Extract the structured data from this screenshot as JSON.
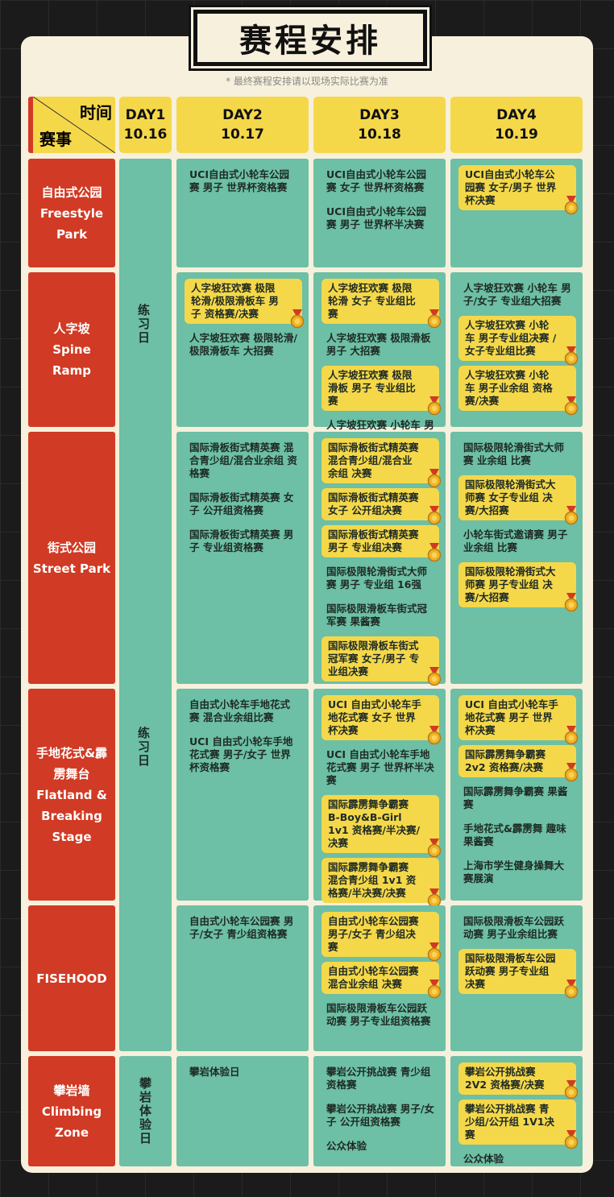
{
  "header": {
    "title": "赛程安排",
    "note": "* 最终赛程安排请以现场实际比赛为准",
    "corner": {
      "time": "时间",
      "event": "赛事"
    },
    "days": [
      {
        "day": "DAY1",
        "date": "10.16"
      },
      {
        "day": "DAY2",
        "date": "10.17"
      },
      {
        "day": "DAY3",
        "date": "10.18"
      },
      {
        "day": "DAY4",
        "date": "10.19"
      }
    ]
  },
  "day1": {
    "merged": [
      "练习日",
      "练习日"
    ],
    "climbing": "攀岩体验日"
  },
  "rows": [
    {
      "name": [
        "自由式公园",
        "Freestyle",
        "Park"
      ],
      "cells": [
        [
          {
            "text": "UCI自由式小轮车公园赛 男子 世界杯资格赛",
            "final": false
          }
        ],
        [
          {
            "text": "UCI自由式小轮车公园赛 女子 世界杯资格赛",
            "final": false
          },
          {
            "text": "UCI自由式小轮车公园赛 男子 世界杯半决赛",
            "final": false
          }
        ],
        [
          {
            "text": "UCI自由式小轮车公园赛 女子/男子 世界杯决赛",
            "final": true
          }
        ]
      ]
    },
    {
      "name": [
        "人字坡",
        "Spine",
        "Ramp"
      ],
      "cells": [
        [
          {
            "text": "人字坡狂欢赛 极限轮滑/极限滑板车 男子 资格赛/决赛",
            "final": true
          },
          {
            "text": "人字坡狂欢赛 极限轮滑/极限滑板车 大招赛",
            "final": false
          }
        ],
        [
          {
            "text": "人字坡狂欢赛 极限轮滑 女子 专业组比赛",
            "final": true
          },
          {
            "text": "人字坡狂欢赛 极限滑板 男子 大招赛",
            "final": false
          },
          {
            "text": "人字坡狂欢赛 极限滑板 男子 专业组比赛",
            "final": true
          },
          {
            "text": "人字坡狂欢赛 小轮车 男子 专业组资格赛",
            "final": false
          }
        ],
        [
          {
            "text": "人字坡狂欢赛 小轮车 男子/女子 专业组大招赛",
            "final": false
          },
          {
            "text": "人字坡狂欢赛 小轮车 男子专业组决赛 / 女子专业组比赛",
            "final": true
          },
          {
            "text": "人字坡狂欢赛 小轮车 男子业余组 资格赛/决赛",
            "final": true
          }
        ]
      ]
    },
    {
      "name": [
        "街式公园",
        "Street Park"
      ],
      "cells": [
        [
          {
            "text": "国际滑板街式精英赛 混合青少组/混合业余组 资格赛",
            "final": false
          },
          {
            "text": "国际滑板街式精英赛 女子 公开组资格赛",
            "final": false
          },
          {
            "text": "国际滑板街式精英赛 男子 专业组资格赛",
            "final": false
          }
        ],
        [
          {
            "text": "国际滑板街式精英赛 混合青少组/混合业余组 决赛",
            "final": true
          },
          {
            "text": "国际滑板街式精英赛 女子 公开组决赛",
            "final": true
          },
          {
            "text": "国际滑板街式精英赛 男子 专业组决赛",
            "final": true
          },
          {
            "text": "国际极限轮滑街式大师赛 男子 专业组 16强",
            "final": false
          },
          {
            "text": "国际极限滑板车街式冠军赛 果酱赛",
            "final": false
          },
          {
            "text": "国际极限滑板车街式冠军赛 女子/男子 专业组决赛",
            "final": true
          }
        ],
        [
          {
            "text": "国际极限轮滑街式大师赛 业余组 比赛",
            "final": false
          },
          {
            "text": "国际极限轮滑街式大师赛 女子专业组 决赛/大招赛",
            "final": true
          },
          {
            "text": "小轮车街式邀请赛 男子业余组 比赛",
            "final": false
          },
          {
            "text": "国际极限轮滑街式大师赛 男子专业组 决赛/大招赛",
            "final": true
          }
        ]
      ]
    },
    {
      "name": [
        "手地花式&霹",
        "雳舞台",
        "Flatland &",
        "Breaking",
        "Stage"
      ],
      "cells": [
        [
          {
            "text": "自由式小轮车手地花式赛 混合业余组比赛",
            "final": false
          },
          {
            "text": "UCI 自由式小轮车手地花式赛 男子/女子 世界杯资格赛",
            "final": false
          }
        ],
        [
          {
            "text": "UCI 自由式小轮车手地花式赛 女子 世界杯决赛",
            "final": true
          },
          {
            "text": "UCI 自由式小轮车手地花式赛 男子 世界杯半决赛",
            "final": false
          },
          {
            "text": "国际霹雳舞争霸赛 B-Boy&B-Girl 1v1 资格赛/半决赛/决赛",
            "final": true
          },
          {
            "text": "国际霹雳舞争霸赛 混合青少组 1v1 资格赛/半决赛/决赛",
            "final": true
          }
        ],
        [
          {
            "text": "UCI 自由式小轮车手地花式赛 男子 世界杯决赛",
            "final": true
          },
          {
            "text": "国际霹雳舞争霸赛 2v2 资格赛/决赛",
            "final": true
          },
          {
            "text": "国际霹雳舞争霸赛 果酱赛",
            "final": false
          },
          {
            "text": "手地花式&霹雳舞 趣味果酱赛",
            "final": false
          },
          {
            "text": "上海市学生健身操舞大赛展演",
            "final": false
          }
        ]
      ]
    },
    {
      "name": [
        "FISEHOOD"
      ],
      "cells": [
        [
          {
            "text": "自由式小轮车公园赛 男子/女子 青少组资格赛",
            "final": false
          }
        ],
        [
          {
            "text": "自由式小轮车公园赛 男子/女子 青少组决赛",
            "final": true
          },
          {
            "text": "自由式小轮车公园赛 混合业余组 决赛",
            "final": true
          },
          {
            "text": "国际极限滑板车公园跃动赛 男子专业组资格赛",
            "final": false
          }
        ],
        [
          {
            "text": "国际极限滑板车公园跃动赛 男子业余组比赛",
            "final": false
          },
          {
            "text": "国际极限滑板车公园跃动赛 男子专业组决赛",
            "final": true
          }
        ]
      ]
    },
    {
      "name": [
        "攀岩墙",
        "Climbing",
        "Zone"
      ],
      "cells": [
        [
          {
            "text": "攀岩体验日",
            "final": false
          }
        ],
        [
          {
            "text": "攀岩公开挑战赛 青少组资格赛",
            "final": false
          },
          {
            "text": "攀岩公开挑战赛 男子/女子 公开组资格赛",
            "final": false
          },
          {
            "text": "公众体验",
            "final": false
          }
        ],
        [
          {
            "text": "攀岩公开挑战赛 2V2 资格赛/决赛",
            "final": true
          },
          {
            "text": "攀岩公开挑战赛 青少组/公开组 1V1决赛",
            "final": true
          },
          {
            "text": "公众体验",
            "final": false
          }
        ]
      ]
    }
  ]
}
